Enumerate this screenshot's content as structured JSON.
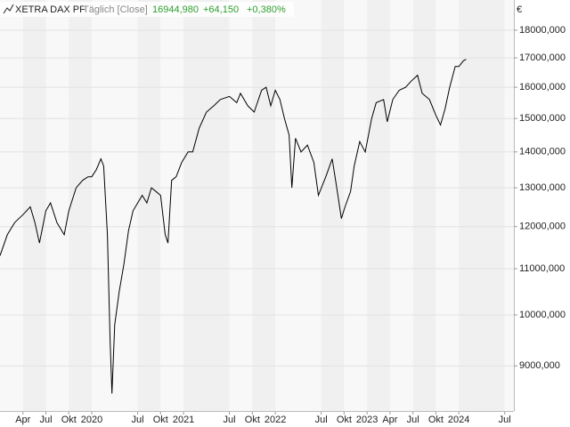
{
  "chart_data": {
    "type": "line",
    "header": {
      "name": "XETRA DAX PF",
      "interval": "Täglich [Close]",
      "last": "16944,980",
      "change": "+64,150",
      "change_pct": "+0,380%"
    },
    "currency": "€",
    "log_scale": true,
    "grid": true,
    "color": "#000000",
    "header_value_color": "#2e9e2e",
    "xlim": [
      2019.0,
      2024.6
    ],
    "xticks": [
      {
        "value": 2019.25,
        "label": "Apr"
      },
      {
        "value": 2019.5,
        "label": "Jul"
      },
      {
        "value": 2019.75,
        "label": "Okt"
      },
      2020,
      {
        "value": 2020.5,
        "label": "Jul"
      },
      {
        "value": 2020.75,
        "label": "Okt"
      },
      2021,
      {
        "value": 2021.5,
        "label": "Jul"
      },
      {
        "value": 2021.75,
        "label": "Okt"
      },
      2022,
      {
        "value": 2022.5,
        "label": "Jul"
      },
      {
        "value": 2022.75,
        "label": "Okt"
      },
      2023,
      {
        "value": 2023.25,
        "label": "Apr"
      },
      {
        "value": 2023.5,
        "label": "Jul"
      },
      {
        "value": 2023.75,
        "label": "Okt"
      },
      2024,
      {
        "value": 2024.5,
        "label": "Jul"
      }
    ],
    "ylim": [
      8200,
      18400
    ],
    "yticks": [
      {
        "value": 9000,
        "label": "9000,000"
      },
      {
        "value": 10000,
        "label": "10000,000"
      },
      {
        "value": 11000,
        "label": "11000,000"
      },
      {
        "value": 12000,
        "label": "12000,000"
      },
      {
        "value": 13000,
        "label": "13000,000"
      },
      {
        "value": 14000,
        "label": "14000,000"
      },
      {
        "value": 15000,
        "label": "15000,000"
      },
      {
        "value": 16000,
        "label": "16000,000"
      },
      {
        "value": 17000,
        "label": "17000,000"
      },
      {
        "value": 18000,
        "label": "18000,000"
      }
    ],
    "x": [
      2019.0,
      2019.08,
      2019.16,
      2019.25,
      2019.33,
      2019.38,
      2019.43,
      2019.5,
      2019.55,
      2019.62,
      2019.7,
      2019.75,
      2019.83,
      2019.9,
      2019.96,
      2020.0,
      2020.05,
      2020.1,
      2020.13,
      2020.17,
      2020.2,
      2020.22,
      2020.25,
      2020.3,
      2020.35,
      2020.4,
      2020.45,
      2020.5,
      2020.55,
      2020.6,
      2020.65,
      2020.7,
      2020.75,
      2020.8,
      2020.83,
      2020.87,
      2020.92,
      2020.98,
      2021.05,
      2021.1,
      2021.17,
      2021.25,
      2021.33,
      2021.4,
      2021.5,
      2021.58,
      2021.62,
      2021.7,
      2021.77,
      2021.85,
      2021.9,
      2021.95,
      2022.0,
      2022.05,
      2022.1,
      2022.15,
      2022.18,
      2022.22,
      2022.28,
      2022.35,
      2022.42,
      2022.47,
      2022.55,
      2022.62,
      2022.67,
      2022.72,
      2022.76,
      2022.82,
      2022.86,
      2022.92,
      2022.98,
      2023.05,
      2023.1,
      2023.18,
      2023.22,
      2023.28,
      2023.35,
      2023.42,
      2023.48,
      2023.55,
      2023.6,
      2023.68,
      2023.75,
      2023.8,
      2023.85,
      2023.9,
      2023.96,
      2024.0,
      2024.05,
      2024.08
    ],
    "values": [
      11300,
      11800,
      12100,
      12300,
      12500,
      12100,
      11600,
      12400,
      12600,
      12100,
      11800,
      12400,
      13000,
      13200,
      13300,
      13300,
      13500,
      13800,
      13600,
      11800,
      9500,
      8500,
      9800,
      10500,
      11100,
      11900,
      12400,
      12600,
      12800,
      12600,
      13000,
      12900,
      12800,
      11800,
      11600,
      13200,
      13300,
      13700,
      14000,
      14000,
      14700,
      15200,
      15400,
      15600,
      15700,
      15500,
      15800,
      15400,
      15200,
      15900,
      16000,
      15400,
      15900,
      15600,
      15000,
      14500,
      13000,
      14400,
      14000,
      14200,
      13700,
      12800,
      13300,
      13800,
      13000,
      12200,
      12500,
      12900,
      13600,
      14300,
      14000,
      15000,
      15500,
      15600,
      14900,
      15600,
      15900,
      16000,
      16200,
      16400,
      15800,
      15600,
      15100,
      14800,
      15300,
      16000,
      16700,
      16700,
      16900,
      16950
    ]
  }
}
